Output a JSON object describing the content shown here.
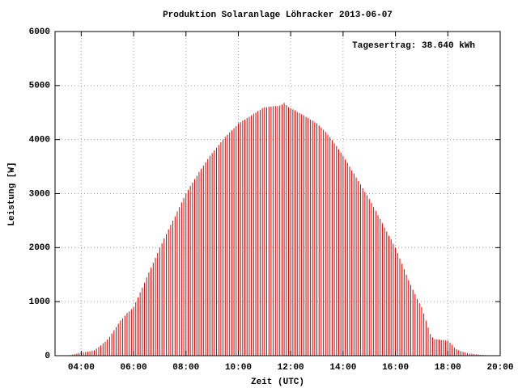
{
  "chart_data": {
    "type": "impulse",
    "title": "Produktion Solaranlage Löhracker 2013-06-07",
    "annotation": "Tagesertrag: 38.640 kWh",
    "x_label": "Zeit (UTC)",
    "y_label": "Leistung [W]",
    "color": "#dd0000",
    "grid": true,
    "xlim": [
      "03:00",
      "20:00"
    ],
    "xticks": [
      "04:00",
      "06:00",
      "08:00",
      "10:00",
      "12:00",
      "14:00",
      "16:00",
      "18:00",
      "20:00"
    ],
    "ylim": [
      0,
      6000
    ],
    "yticks": [
      0,
      1000,
      2000,
      3000,
      4000,
      5000,
      6000
    ],
    "x": [
      "03:35",
      "03:40",
      "03:45",
      "03:50",
      "03:55",
      "04:00",
      "04:05",
      "04:10",
      "04:15",
      "04:20",
      "04:25",
      "04:30",
      "04:35",
      "04:40",
      "04:45",
      "04:50",
      "04:55",
      "05:00",
      "05:05",
      "05:10",
      "05:15",
      "05:20",
      "05:25",
      "05:30",
      "05:35",
      "05:40",
      "05:45",
      "05:50",
      "05:55",
      "06:00",
      "06:05",
      "06:10",
      "06:15",
      "06:20",
      "06:25",
      "06:30",
      "06:35",
      "06:40",
      "06:45",
      "06:50",
      "06:55",
      "07:00",
      "07:05",
      "07:10",
      "07:15",
      "07:20",
      "07:25",
      "07:30",
      "07:35",
      "07:40",
      "07:45",
      "07:50",
      "07:55",
      "08:00",
      "08:05",
      "08:10",
      "08:15",
      "08:20",
      "08:25",
      "08:30",
      "08:35",
      "08:40",
      "08:45",
      "08:50",
      "08:55",
      "09:00",
      "09:05",
      "09:10",
      "09:15",
      "09:20",
      "09:25",
      "09:30",
      "09:35",
      "09:40",
      "09:45",
      "09:50",
      "09:55",
      "10:00",
      "10:05",
      "10:10",
      "10:15",
      "10:20",
      "10:25",
      "10:30",
      "10:35",
      "10:40",
      "10:45",
      "10:50",
      "10:55",
      "11:00",
      "11:05",
      "11:10",
      "11:15",
      "11:20",
      "11:25",
      "11:30",
      "11:35",
      "11:40",
      "11:45",
      "11:50",
      "11:55",
      "12:00",
      "12:05",
      "12:10",
      "12:15",
      "12:20",
      "12:25",
      "12:30",
      "12:35",
      "12:40",
      "12:45",
      "12:50",
      "12:55",
      "13:00",
      "13:05",
      "13:10",
      "13:15",
      "13:20",
      "13:25",
      "13:30",
      "13:35",
      "13:40",
      "13:45",
      "13:50",
      "13:55",
      "14:00",
      "14:05",
      "14:10",
      "14:15",
      "14:20",
      "14:25",
      "14:30",
      "14:35",
      "14:40",
      "14:45",
      "14:50",
      "14:55",
      "15:00",
      "15:05",
      "15:10",
      "15:15",
      "15:20",
      "15:25",
      "15:30",
      "15:35",
      "15:40",
      "15:45",
      "15:50",
      "15:55",
      "16:00",
      "16:05",
      "16:10",
      "16:15",
      "16:20",
      "16:25",
      "16:30",
      "16:35",
      "16:40",
      "16:45",
      "16:50",
      "16:55",
      "17:00",
      "17:05",
      "17:10",
      "17:15",
      "17:20",
      "17:25",
      "17:30",
      "17:35",
      "17:40",
      "17:45",
      "17:50",
      "17:55",
      "18:00",
      "18:05",
      "18:10",
      "18:15",
      "18:20",
      "18:25",
      "18:30",
      "18:35",
      "18:40",
      "18:45",
      "18:50",
      "18:55",
      "19:00",
      "19:05",
      "19:10",
      "19:15",
      "19:20",
      "19:25",
      "19:30",
      "19:35"
    ],
    "values": [
      10,
      20,
      30,
      40,
      50,
      60,
      65,
      70,
      75,
      80,
      90,
      100,
      130,
      160,
      190,
      230,
      260,
      300,
      350,
      410,
      470,
      530,
      590,
      650,
      690,
      740,
      790,
      820,
      860,
      900,
      990,
      1080,
      1170,
      1260,
      1350,
      1450,
      1540,
      1630,
      1720,
      1810,
      1900,
      2000,
      2080,
      2170,
      2250,
      2340,
      2420,
      2500,
      2580,
      2670,
      2750,
      2840,
      2920,
      3000,
      3070,
      3140,
      3200,
      3270,
      3330,
      3400,
      3460,
      3520,
      3580,
      3640,
      3700,
      3750,
      3800,
      3850,
      3900,
      3950,
      4000,
      4050,
      4090,
      4130,
      4170,
      4210,
      4250,
      4300,
      4320,
      4350,
      4370,
      4400,
      4420,
      4450,
      4480,
      4500,
      4530,
      4550,
      4580,
      4600,
      4600,
      4610,
      4610,
      4620,
      4620,
      4620,
      4630,
      4650,
      4680,
      4640,
      4600,
      4580,
      4560,
      4540,
      4510,
      4490,
      4470,
      4450,
      4420,
      4400,
      4370,
      4350,
      4320,
      4300,
      4260,
      4220,
      4180,
      4140,
      4090,
      4050,
      3990,
      3930,
      3880,
      3820,
      3760,
      3700,
      3630,
      3570,
      3500,
      3430,
      3370,
      3300,
      3230,
      3170,
      3100,
      3030,
      2970,
      2900,
      2830,
      2750,
      2680,
      2600,
      2530,
      2450,
      2370,
      2300,
      2220,
      2150,
      2070,
      2000,
      1900,
      1800,
      1700,
      1600,
      1500,
      1400,
      1310,
      1220,
      1140,
      1050,
      970,
      900,
      780,
      650,
      520,
      400,
      340,
      300,
      300,
      300,
      290,
      290,
      280,
      280,
      240,
      200,
      150,
      120,
      100,
      80,
      70,
      60,
      50,
      40,
      35,
      30,
      25,
      20,
      15,
      12,
      10,
      7,
      5
    ]
  }
}
